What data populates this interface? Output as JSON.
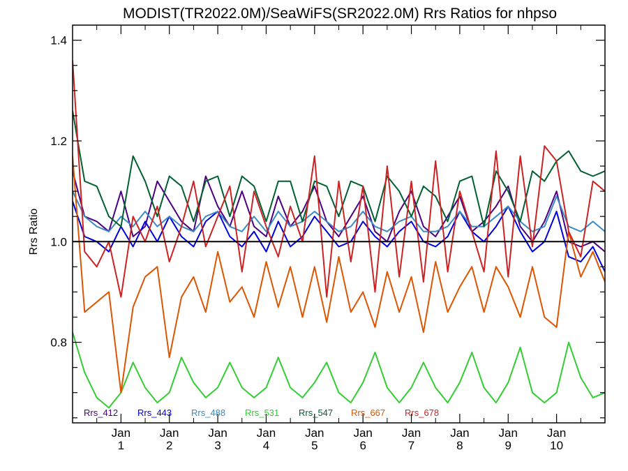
{
  "chart_data": {
    "type": "line",
    "title": "MODIST(TR2022.0M)/SeaWiFS(SR2022.0M)  Rrs Ratios for nhpso",
    "xlabel": "",
    "ylabel": "Rrs Ratio",
    "ylim": [
      0.64,
      1.43
    ],
    "yticks": [
      {
        "value": 0.8,
        "label": "0.8"
      },
      {
        "value": 1.0,
        "label": "1.0"
      },
      {
        "value": 1.2,
        "label": "1.2"
      },
      {
        "value": 1.4,
        "label": "1.4"
      }
    ],
    "xlim": [
      0,
      11
    ],
    "xticks": [
      {
        "value": 1,
        "top": "Jan",
        "bottom": "1"
      },
      {
        "value": 2,
        "top": "Jan",
        "bottom": "2"
      },
      {
        "value": 3,
        "top": "Jan",
        "bottom": "3"
      },
      {
        "value": 4,
        "top": "Jan",
        "bottom": "4"
      },
      {
        "value": 5,
        "top": "Jan",
        "bottom": "5"
      },
      {
        "value": 6,
        "top": "Jan",
        "bottom": "6"
      },
      {
        "value": 7,
        "top": "Jan",
        "bottom": "7"
      },
      {
        "value": 8,
        "top": "Jan",
        "bottom": "8"
      },
      {
        "value": 9,
        "top": "Jan",
        "bottom": "9"
      },
      {
        "value": 10,
        "top": "Jan",
        "bottom": "10"
      }
    ],
    "reference_line": 1.0,
    "grid": false,
    "legend_position": "bottom, inside plot",
    "series": [
      {
        "name": "Rrs_412",
        "color": "#4b0082",
        "x": [
          0,
          0.25,
          0.5,
          0.75,
          1,
          1.25,
          1.5,
          1.75,
          2,
          2.25,
          2.5,
          2.75,
          3,
          3.25,
          3.5,
          3.75,
          4,
          4.25,
          4.5,
          4.75,
          5,
          5.25,
          5.5,
          5.75,
          6,
          6.25,
          6.5,
          6.75,
          7,
          7.25,
          7.5,
          7.75,
          8,
          8.25,
          8.5,
          8.75,
          9,
          9.25,
          9.5,
          9.75,
          10,
          10.25,
          10.5,
          10.75,
          11
        ],
        "y": [
          1.14,
          1.05,
          1.04,
          1.02,
          1.1,
          1.01,
          1.03,
          1.12,
          1.08,
          1.04,
          1.02,
          1.13,
          1.07,
          1.03,
          1.1,
          1.03,
          1.01,
          1.09,
          1.03,
          1.06,
          1.11,
          1.04,
          1.01,
          1.05,
          1.09,
          1.02,
          1.0,
          1.06,
          1.1,
          1.03,
          1.01,
          1.05,
          1.09,
          1.02,
          1.04,
          1.07,
          1.11,
          1.03,
          1.0,
          1.04,
          1.1,
          1.0,
          0.99,
          1.0,
          0.98
        ]
      },
      {
        "name": "Rrs_443",
        "color": "#0000dd",
        "x": [
          0,
          0.25,
          0.5,
          0.75,
          1,
          1.25,
          1.5,
          1.75,
          2,
          2.25,
          2.5,
          2.75,
          3,
          3.25,
          3.5,
          3.75,
          4,
          4.25,
          4.5,
          4.75,
          5,
          5.25,
          5.5,
          5.75,
          6,
          6.25,
          6.5,
          6.75,
          7,
          7.25,
          7.5,
          7.75,
          8,
          8.25,
          8.5,
          8.75,
          9,
          9.25,
          9.5,
          9.75,
          10,
          10.25,
          10.5,
          10.75,
          11
        ],
        "y": [
          1.08,
          1.01,
          1.0,
          0.98,
          1.03,
          0.99,
          1.04,
          1.0,
          1.05,
          1.01,
          0.99,
          1.04,
          1.06,
          1.01,
          0.99,
          1.02,
          0.98,
          1.04,
          0.99,
          1.01,
          1.05,
          1.02,
          0.99,
          1.0,
          1.04,
          1.01,
          0.99,
          1.02,
          1.04,
          1.0,
          0.99,
          1.01,
          1.06,
          1.02,
          1.0,
          1.03,
          1.07,
          1.02,
          0.98,
          1.0,
          1.06,
          0.97,
          0.96,
          0.99,
          0.94
        ]
      },
      {
        "name": "Rrs_488",
        "color": "#3a8ac4",
        "x": [
          0,
          0.25,
          0.5,
          0.75,
          1,
          1.25,
          1.5,
          1.75,
          2,
          2.25,
          2.5,
          2.75,
          3,
          3.25,
          3.5,
          3.75,
          4,
          4.25,
          4.5,
          4.75,
          5,
          5.25,
          5.5,
          5.75,
          6,
          6.25,
          6.5,
          6.75,
          7,
          7.25,
          7.5,
          7.75,
          8,
          8.25,
          8.5,
          8.75,
          9,
          9.25,
          9.5,
          9.75,
          10,
          10.25,
          10.5,
          10.75,
          11
        ],
        "y": [
          1.1,
          1.05,
          1.03,
          1.02,
          1.05,
          1.03,
          1.06,
          1.03,
          1.05,
          1.03,
          1.02,
          1.05,
          1.06,
          1.03,
          1.02,
          1.05,
          1.02,
          1.06,
          1.03,
          1.04,
          1.06,
          1.04,
          1.02,
          1.03,
          1.06,
          1.03,
          1.02,
          1.04,
          1.05,
          1.02,
          1.02,
          1.03,
          1.06,
          1.03,
          1.03,
          1.05,
          1.07,
          1.04,
          1.02,
          1.03,
          1.09,
          1.03,
          1.02,
          1.04,
          1.02
        ]
      },
      {
        "name": "Rrs_531",
        "color": "#33cc33",
        "x": [
          0,
          0.25,
          0.5,
          0.75,
          1,
          1.25,
          1.5,
          1.75,
          2,
          2.25,
          2.5,
          2.75,
          3,
          3.25,
          3.5,
          3.75,
          4,
          4.25,
          4.5,
          4.75,
          5,
          5.25,
          5.5,
          5.75,
          6,
          6.25,
          6.5,
          6.75,
          7,
          7.25,
          7.5,
          7.75,
          8,
          8.25,
          8.5,
          8.75,
          9,
          9.25,
          9.5,
          9.75,
          10,
          10.25,
          10.5,
          10.75,
          11
        ],
        "y": [
          0.82,
          0.74,
          0.69,
          0.67,
          0.7,
          0.76,
          0.71,
          0.68,
          0.7,
          0.77,
          0.72,
          0.69,
          0.71,
          0.76,
          0.71,
          0.69,
          0.71,
          0.77,
          0.71,
          0.69,
          0.72,
          0.76,
          0.7,
          0.68,
          0.72,
          0.78,
          0.71,
          0.68,
          0.71,
          0.76,
          0.71,
          0.68,
          0.72,
          0.78,
          0.71,
          0.68,
          0.72,
          0.79,
          0.7,
          0.68,
          0.7,
          0.8,
          0.73,
          0.69,
          0.7
        ]
      },
      {
        "name": "Rrs_547",
        "color": "#006030",
        "x": [
          0,
          0.25,
          0.5,
          0.75,
          1,
          1.25,
          1.5,
          1.75,
          2,
          2.25,
          2.5,
          2.75,
          3,
          3.25,
          3.5,
          3.75,
          4,
          4.25,
          4.5,
          4.75,
          5,
          5.25,
          5.5,
          5.75,
          6,
          6.25,
          6.5,
          6.75,
          7,
          7.25,
          7.5,
          7.75,
          8,
          8.25,
          8.5,
          8.75,
          9,
          9.25,
          9.5,
          9.75,
          10,
          10.25,
          10.5,
          10.75,
          11
        ],
        "y": [
          1.26,
          1.12,
          1.11,
          1.05,
          1.03,
          1.17,
          1.12,
          1.05,
          1.13,
          1.11,
          1.04,
          1.12,
          1.13,
          1.05,
          1.13,
          1.11,
          1.04,
          1.12,
          1.12,
          1.04,
          1.12,
          1.11,
          1.05,
          1.12,
          1.11,
          1.04,
          1.13,
          1.1,
          1.05,
          1.11,
          1.09,
          1.04,
          1.12,
          1.13,
          1.03,
          1.14,
          1.1,
          1.04,
          1.14,
          1.12,
          1.16,
          1.18,
          1.14,
          1.13,
          1.14
        ]
      },
      {
        "name": "Rrs_667",
        "color": "#dd5500",
        "x": [
          0,
          0.25,
          0.5,
          0.75,
          1,
          1.25,
          1.5,
          1.75,
          2,
          2.25,
          2.5,
          2.75,
          3,
          3.25,
          3.5,
          3.75,
          4,
          4.25,
          4.5,
          4.75,
          5,
          5.25,
          5.5,
          5.75,
          6,
          6.25,
          6.5,
          6.75,
          7,
          7.25,
          7.5,
          7.75,
          8,
          8.25,
          8.5,
          8.75,
          9,
          9.25,
          9.5,
          9.75,
          10,
          10.25,
          10.5,
          10.75,
          11
        ],
        "y": [
          1.17,
          0.86,
          0.88,
          0.9,
          0.7,
          0.87,
          0.93,
          0.95,
          0.77,
          0.89,
          0.93,
          0.86,
          0.98,
          0.88,
          0.91,
          0.85,
          0.96,
          0.87,
          0.95,
          0.85,
          0.95,
          0.84,
          0.97,
          0.86,
          0.9,
          0.83,
          0.94,
          0.86,
          0.93,
          0.82,
          0.96,
          0.86,
          0.91,
          0.95,
          0.86,
          0.95,
          0.91,
          0.85,
          0.95,
          0.85,
          0.83,
          1.02,
          0.93,
          0.98,
          0.92
        ]
      },
      {
        "name": "Rrs_678",
        "color": "#cc2222",
        "x": [
          0,
          0.25,
          0.5,
          0.75,
          1,
          1.25,
          1.5,
          1.75,
          2,
          2.25,
          2.5,
          2.75,
          3,
          3.25,
          3.5,
          3.75,
          4,
          4.25,
          4.5,
          4.75,
          5,
          5.25,
          5.5,
          5.75,
          6,
          6.25,
          6.5,
          6.75,
          7,
          7.25,
          7.5,
          7.75,
          8,
          8.25,
          8.5,
          8.75,
          9,
          9.25,
          9.5,
          9.75,
          10,
          10.25,
          10.5,
          10.75,
          11
        ],
        "y": [
          1.36,
          0.98,
          0.95,
          1.0,
          0.89,
          1.05,
          1.0,
          1.07,
          0.96,
          1.03,
          1.12,
          0.99,
          1.05,
          1.11,
          0.94,
          1.1,
          1.03,
          0.97,
          1.07,
          1.0,
          1.17,
          0.89,
          1.12,
          0.96,
          1.11,
          0.9,
          1.15,
          0.93,
          1.12,
          0.92,
          1.16,
          0.94,
          1.1,
          1.02,
          0.94,
          1.18,
          0.93,
          1.17,
          0.99,
          1.19,
          1.16,
          1.02,
          0.97,
          1.12,
          1.1
        ]
      }
    ]
  }
}
